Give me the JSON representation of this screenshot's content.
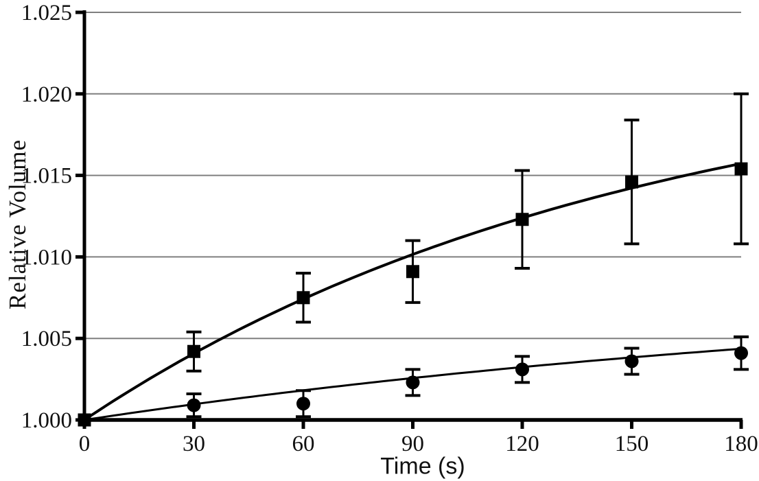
{
  "chart_data": {
    "type": "line",
    "title": "",
    "xlabel": "Time (s)",
    "ylabel": "Relative Volume",
    "xlim": [
      0,
      180
    ],
    "ylim": [
      1.0,
      1.025
    ],
    "x": [
      0,
      30,
      60,
      90,
      120,
      150,
      180
    ],
    "xticks": {
      "values": [
        0,
        30,
        60,
        90,
        120,
        150,
        180
      ],
      "labels": [
        "0",
        "30",
        "60",
        "90",
        "120",
        "150",
        "180"
      ]
    },
    "yticks": {
      "values": [
        1.0,
        1.005,
        1.01,
        1.015,
        1.02,
        1.025
      ],
      "labels": [
        "1.000",
        "1.005",
        "1.010",
        "1.015",
        "1.020",
        "1.025"
      ]
    },
    "grid": "horizontal-gray-lines-at-y-ticks",
    "legend": "none",
    "series": [
      {
        "name": "squares",
        "marker": "filled-square",
        "color": "#000000",
        "values": [
          1.0,
          1.0042,
          1.0075,
          1.0091,
          1.0123,
          1.0146,
          1.0154
        ],
        "error": [
          0,
          0.0012,
          0.0015,
          0.0019,
          0.003,
          0.0038,
          0.0046
        ],
        "fit": {
          "model": "y = 1 + A*(1 - exp(-t/tau))",
          "A": 0.0225,
          "tau": 150
        }
      },
      {
        "name": "circles",
        "marker": "filled-circle",
        "color": "#000000",
        "values": [
          1.0,
          1.0009,
          1.001,
          1.0023,
          1.0031,
          1.0036,
          1.0041
        ],
        "error": [
          0,
          0.0007,
          0.0008,
          0.0008,
          0.0008,
          0.0008,
          0.001
        ],
        "fit": {
          "model": "y = 1 + A*(1 - exp(-t/tau))",
          "A": 0.0085,
          "tau": 250
        }
      }
    ],
    "colors": {
      "axis": "#000000",
      "grid": "#7f7f7f",
      "marker": "#000000",
      "background": "#ffffff"
    }
  }
}
